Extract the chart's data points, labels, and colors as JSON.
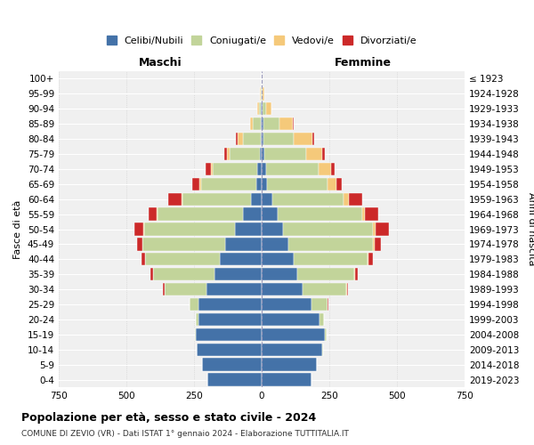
{
  "age_groups": [
    "0-4",
    "5-9",
    "10-14",
    "15-19",
    "20-24",
    "25-29",
    "30-34",
    "35-39",
    "40-44",
    "45-49",
    "50-54",
    "55-59",
    "60-64",
    "65-69",
    "70-74",
    "75-79",
    "80-84",
    "85-89",
    "90-94",
    "95-99",
    "100+"
  ],
  "birth_years": [
    "2019-2023",
    "2014-2018",
    "2009-2013",
    "2004-2008",
    "1999-2003",
    "1994-1998",
    "1989-1993",
    "1984-1988",
    "1979-1983",
    "1974-1978",
    "1969-1973",
    "1964-1968",
    "1959-1963",
    "1954-1958",
    "1949-1953",
    "1944-1948",
    "1939-1943",
    "1934-1938",
    "1929-1933",
    "1924-1928",
    "≤ 1923"
  ],
  "male": {
    "celibe": [
      200,
      220,
      240,
      245,
      235,
      235,
      205,
      175,
      155,
      135,
      100,
      70,
      38,
      20,
      15,
      8,
      4,
      3,
      2,
      1,
      0
    ],
    "coniugato": [
      0,
      0,
      1,
      3,
      10,
      30,
      155,
      225,
      275,
      305,
      335,
      315,
      255,
      205,
      165,
      110,
      65,
      30,
      8,
      2,
      0
    ],
    "vedovo": [
      0,
      0,
      0,
      0,
      0,
      0,
      0,
      0,
      0,
      2,
      2,
      2,
      3,
      5,
      8,
      10,
      20,
      10,
      5,
      2,
      0
    ],
    "divorziato": [
      0,
      0,
      0,
      0,
      0,
      2,
      5,
      10,
      15,
      20,
      35,
      30,
      50,
      25,
      20,
      10,
      5,
      0,
      0,
      0,
      0
    ]
  },
  "female": {
    "nubile": [
      185,
      205,
      225,
      235,
      215,
      185,
      152,
      130,
      120,
      100,
      80,
      60,
      40,
      20,
      15,
      10,
      8,
      5,
      2,
      1,
      0
    ],
    "coniugata": [
      0,
      0,
      2,
      5,
      15,
      60,
      162,
      212,
      272,
      312,
      332,
      312,
      262,
      225,
      195,
      155,
      110,
      60,
      15,
      3,
      1
    ],
    "vedova": [
      0,
      0,
      0,
      0,
      0,
      0,
      1,
      2,
      3,
      5,
      8,
      10,
      20,
      30,
      45,
      60,
      70,
      50,
      20,
      5,
      0
    ],
    "divorziata": [
      0,
      0,
      0,
      0,
      1,
      2,
      5,
      10,
      15,
      25,
      50,
      50,
      50,
      20,
      15,
      10,
      5,
      2,
      0,
      0,
      0
    ]
  },
  "colors": {
    "celibe": "#4472A8",
    "coniugato": "#C2D49A",
    "vedovo": "#F5C97A",
    "divorziato": "#CC2929"
  },
  "legend_labels": [
    "Celibi/Nubili",
    "Coniugati/e",
    "Vedovi/e",
    "Divorziati/e"
  ],
  "xlabel_left": "Maschi",
  "xlabel_right": "Femmine",
  "ylabel_left": "Fasce di età",
  "ylabel_right": "Anni di nascita",
  "title": "Popolazione per età, sesso e stato civile - 2024",
  "subtitle": "COMUNE DI ZEVIO (VR) - Dati ISTAT 1° gennaio 2024 - Elaborazione TUTTITALIA.IT",
  "xlim": 750,
  "bg_color": "#FFFFFF",
  "plot_bg": "#F0F0F0"
}
